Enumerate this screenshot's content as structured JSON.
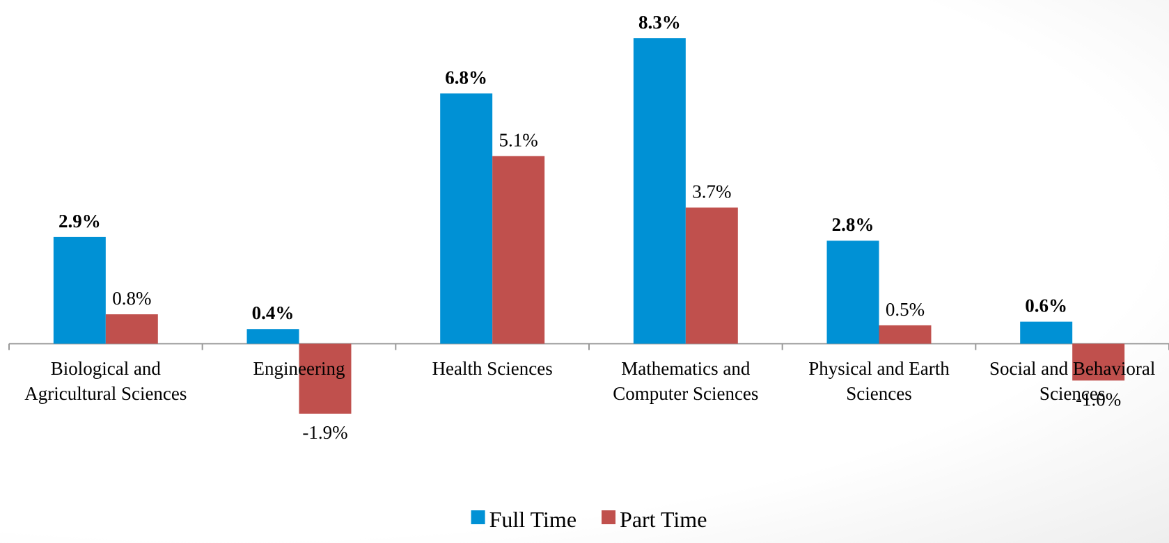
{
  "chart_data": {
    "type": "bar",
    "categories": [
      "Biological and Agricultural Sciences",
      "Engineering",
      "Health Sciences",
      "Mathematics and Computer Sciences",
      "Physical and Earth Sciences",
      "Social and Behavioral Sciences"
    ],
    "series": [
      {
        "name": "Full Time",
        "color": "#0091d5",
        "values": [
          2.9,
          0.4,
          6.8,
          8.3,
          2.8,
          0.6
        ],
        "value_labels": [
          "2.9%",
          "0.4%",
          "6.8%",
          "8.3%",
          "2.8%",
          "0.6%"
        ]
      },
      {
        "name": "Part Time",
        "color": "#c0504d",
        "values": [
          0.8,
          -1.9,
          5.1,
          3.7,
          0.5,
          -1.0
        ],
        "value_labels": [
          "0.8%",
          "-1.9%",
          "5.1%",
          "3.7%",
          "0.5%",
          "-1.0%"
        ]
      }
    ],
    "legend": "bottom"
  }
}
